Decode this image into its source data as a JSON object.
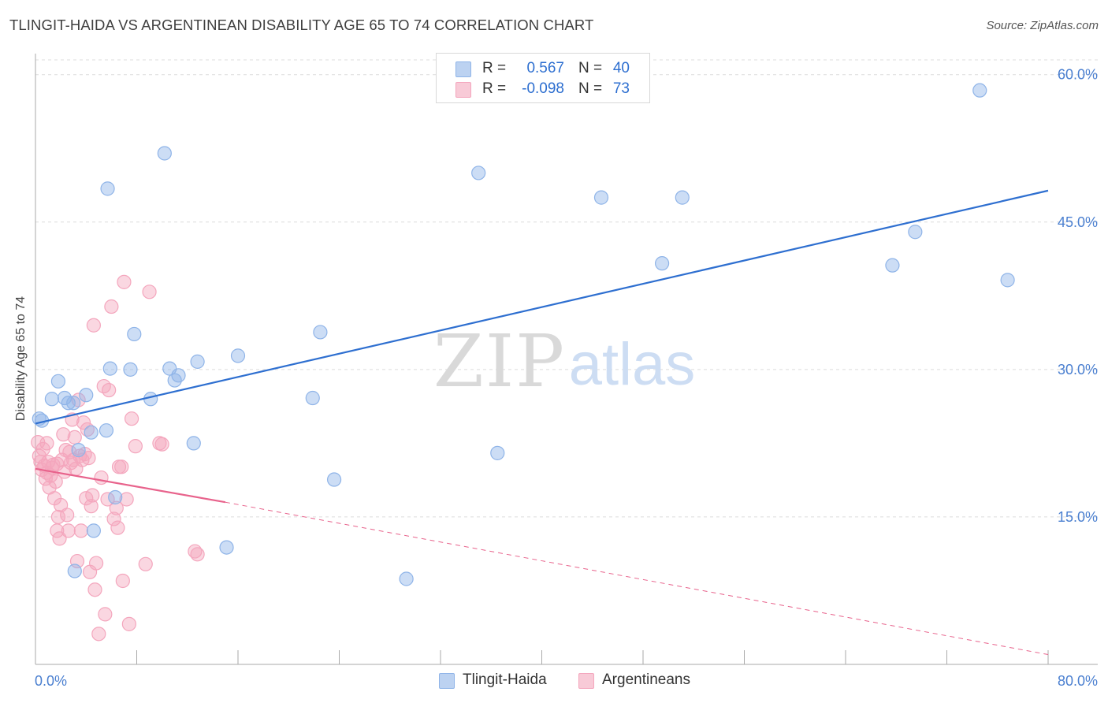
{
  "title": "TLINGIT-HAIDA VS ARGENTINEAN DISABILITY AGE 65 TO 74 CORRELATION CHART",
  "source": "Source: ZipAtlas.com",
  "watermark": {
    "zip": "ZIP",
    "atlas": "atlas"
  },
  "legend": [
    {
      "r_label": "R =",
      "r_value": "0.567",
      "n_label": "N =",
      "n_value": "40",
      "color": "#8fb4e8"
    },
    {
      "r_label": "R =",
      "r_value": "-0.098",
      "n_label": "N =",
      "n_value": "73",
      "color": "#f4a6bd"
    }
  ],
  "chart_data": {
    "type": "scatter",
    "title": "TLINGIT-HAIDA VS ARGENTINEAN DISABILITY AGE 65 TO 74 CORRELATION CHART",
    "xlabel": "",
    "ylabel": "Disability Age 65 to 74",
    "xlim": [
      0,
      80
    ],
    "ylim": [
      0,
      61.5
    ],
    "x_tick_labels": [
      "0.0%",
      "80.0%"
    ],
    "y_ticks": [
      15,
      30,
      45,
      60
    ],
    "y_tick_labels": [
      "15.0%",
      "30.0%",
      "45.0%",
      "60.0%"
    ],
    "grid": true,
    "series": [
      {
        "name": "Tlingit-Haida",
        "color": "#8fb4e8",
        "line_color": "#2e6fd0",
        "trend": {
          "x0": 0,
          "y0": 24.5,
          "x1": 80,
          "y1": 48.2,
          "dashed_to": null
        },
        "points": [
          [
            0.3,
            25.0
          ],
          [
            0.5,
            24.8
          ],
          [
            1.3,
            27.0
          ],
          [
            1.8,
            28.8
          ],
          [
            2.3,
            27.1
          ],
          [
            2.6,
            26.6
          ],
          [
            3.1,
            9.5
          ],
          [
            3.4,
            21.8
          ],
          [
            4.0,
            27.4
          ],
          [
            4.4,
            23.6
          ],
          [
            4.6,
            13.6
          ],
          [
            5.6,
            23.8
          ],
          [
            5.7,
            48.4
          ],
          [
            5.9,
            30.1
          ],
          [
            6.3,
            17.0
          ],
          [
            7.5,
            30.0
          ],
          [
            7.8,
            33.6
          ],
          [
            9.1,
            27.0
          ],
          [
            10.2,
            52.0
          ],
          [
            10.6,
            30.1
          ],
          [
            11.0,
            28.9
          ],
          [
            11.3,
            29.4
          ],
          [
            12.5,
            22.5
          ],
          [
            12.8,
            30.8
          ],
          [
            15.1,
            11.9
          ],
          [
            16.0,
            31.4
          ],
          [
            21.9,
            27.1
          ],
          [
            22.5,
            33.8
          ],
          [
            23.6,
            18.8
          ],
          [
            29.3,
            8.7
          ],
          [
            35.0,
            50.0
          ],
          [
            36.5,
            21.5
          ],
          [
            44.7,
            47.5
          ],
          [
            49.5,
            40.8
          ],
          [
            51.1,
            47.5
          ],
          [
            67.7,
            40.6
          ],
          [
            69.5,
            44.0
          ],
          [
            74.6,
            58.4
          ],
          [
            76.8,
            39.1
          ],
          [
            3.0,
            26.6
          ]
        ]
      },
      {
        "name": "Argentineans",
        "color": "#f4a6bd",
        "line_color": "#e8638c",
        "trend": {
          "x0": 0,
          "y0": 19.9,
          "x1": 15.0,
          "y1": 16.5,
          "dashed_to": [
            80,
            1.0
          ]
        },
        "points": [
          [
            0.2,
            22.6
          ],
          [
            0.3,
            21.2
          ],
          [
            0.4,
            20.6
          ],
          [
            0.5,
            19.8
          ],
          [
            0.6,
            21.9
          ],
          [
            0.7,
            20.2
          ],
          [
            0.8,
            18.9
          ],
          [
            0.9,
            22.5
          ],
          [
            1.0,
            20.6
          ],
          [
            1.1,
            18.0
          ],
          [
            1.2,
            19.2
          ],
          [
            1.4,
            20.3
          ],
          [
            1.5,
            16.9
          ],
          [
            1.6,
            18.6
          ],
          [
            1.7,
            13.6
          ],
          [
            1.8,
            15.0
          ],
          [
            1.9,
            12.8
          ],
          [
            2.0,
            16.2
          ],
          [
            2.1,
            20.8
          ],
          [
            2.2,
            23.4
          ],
          [
            2.3,
            19.6
          ],
          [
            2.4,
            21.8
          ],
          [
            2.5,
            15.2
          ],
          [
            2.6,
            13.6
          ],
          [
            2.8,
            20.5
          ],
          [
            2.9,
            24.9
          ],
          [
            3.0,
            20.8
          ],
          [
            3.1,
            23.1
          ],
          [
            3.2,
            19.9
          ],
          [
            3.3,
            10.5
          ],
          [
            3.4,
            26.9
          ],
          [
            3.5,
            21.2
          ],
          [
            3.6,
            13.6
          ],
          [
            3.7,
            20.8
          ],
          [
            3.8,
            24.6
          ],
          [
            4.0,
            16.9
          ],
          [
            4.1,
            23.9
          ],
          [
            4.2,
            21.0
          ],
          [
            4.3,
            9.4
          ],
          [
            4.4,
            16.1
          ],
          [
            4.5,
            17.2
          ],
          [
            4.6,
            34.5
          ],
          [
            4.7,
            7.6
          ],
          [
            4.8,
            10.3
          ],
          [
            5.0,
            3.1
          ],
          [
            5.2,
            19.0
          ],
          [
            5.4,
            28.3
          ],
          [
            5.5,
            5.1
          ],
          [
            5.7,
            16.8
          ],
          [
            5.8,
            27.9
          ],
          [
            6.0,
            36.4
          ],
          [
            6.2,
            14.8
          ],
          [
            6.4,
            15.9
          ],
          [
            6.5,
            13.9
          ],
          [
            6.6,
            20.1
          ],
          [
            6.8,
            20.1
          ],
          [
            6.9,
            8.5
          ],
          [
            7.0,
            38.9
          ],
          [
            7.2,
            16.8
          ],
          [
            7.4,
            4.1
          ],
          [
            7.6,
            25.0
          ],
          [
            7.9,
            22.2
          ],
          [
            8.7,
            10.2
          ],
          [
            9.0,
            37.9
          ],
          [
            9.8,
            22.5
          ],
          [
            10.0,
            22.4
          ],
          [
            12.6,
            11.5
          ],
          [
            12.8,
            11.2
          ],
          [
            1.3,
            20.0
          ],
          [
            0.9,
            19.5
          ],
          [
            1.7,
            20.4
          ],
          [
            2.7,
            21.6
          ],
          [
            3.9,
            21.4
          ]
        ]
      }
    ],
    "legend_position": "top-center",
    "bottom_legend": [
      "Tlingit-Haida",
      "Argentineans"
    ]
  }
}
